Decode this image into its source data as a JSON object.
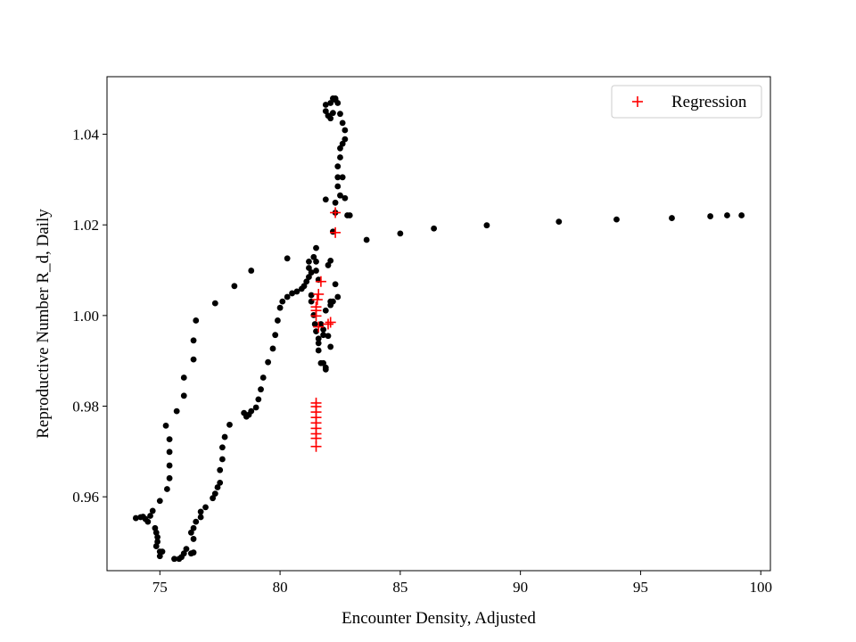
{
  "chart_data": {
    "type": "scatter",
    "title": "",
    "xlabel": "Encounter Density, Adjusted",
    "ylabel": "Reproductive Number R_d, Daily",
    "xlim": [
      72.8,
      100.4
    ],
    "ylim": [
      0.9437,
      1.0527
    ],
    "xticks": [
      75,
      80,
      85,
      90,
      95,
      100
    ],
    "yticks": [
      0.96,
      0.98,
      1.0,
      1.02,
      1.04
    ],
    "xtick_labels": [
      "75",
      "80",
      "85",
      "90",
      "95",
      "100"
    ],
    "ytick_labels": [
      "0.96",
      "0.98",
      "1.00",
      "1.02",
      "1.04"
    ],
    "grid": false,
    "legend": {
      "position": "upper right",
      "entries": [
        "Regression"
      ]
    },
    "series": [
      {
        "marker": "dot",
        "color": "#000000",
        "points": [
          [
            74.0,
            0.9553
          ],
          [
            74.2,
            0.9555
          ],
          [
            74.3,
            0.9556
          ],
          [
            74.4,
            0.9551
          ],
          [
            74.5,
            0.9545
          ],
          [
            74.6,
            0.9558
          ],
          [
            74.7,
            0.9569
          ],
          [
            74.8,
            0.9531
          ],
          [
            74.85,
            0.9521
          ],
          [
            74.9,
            0.9511
          ],
          [
            74.9,
            0.9501
          ],
          [
            74.85,
            0.9491
          ],
          [
            75.0,
            0.9479
          ],
          [
            75.0,
            0.9469
          ],
          [
            75.1,
            0.9479
          ],
          [
            75.0,
            0.9591
          ],
          [
            75.3,
            0.9617
          ],
          [
            75.4,
            0.9641
          ],
          [
            75.4,
            0.9669
          ],
          [
            75.4,
            0.9699
          ],
          [
            75.4,
            0.9727
          ],
          [
            75.25,
            0.9757
          ],
          [
            75.6,
            0.9463
          ],
          [
            75.8,
            0.9463
          ],
          [
            75.9,
            0.9467
          ],
          [
            76.0,
            0.9475
          ],
          [
            76.1,
            0.9485
          ],
          [
            76.3,
            0.9475
          ],
          [
            76.4,
            0.9477
          ],
          [
            76.4,
            0.9507
          ],
          [
            76.3,
            0.9521
          ],
          [
            76.4,
            0.9531
          ],
          [
            76.5,
            0.9545
          ],
          [
            76.7,
            0.9555
          ],
          [
            76.7,
            0.9567
          ],
          [
            76.9,
            0.9577
          ],
          [
            75.7,
            0.9789
          ],
          [
            76.0,
            0.9823
          ],
          [
            76.0,
            0.9863
          ],
          [
            76.4,
            0.9903
          ],
          [
            76.4,
            0.9945
          ],
          [
            76.5,
            0.9989
          ],
          [
            77.2,
            0.9597
          ],
          [
            77.3,
            0.9607
          ],
          [
            77.4,
            0.9621
          ],
          [
            77.5,
            0.9631
          ],
          [
            77.5,
            0.9659
          ],
          [
            77.6,
            0.9683
          ],
          [
            77.6,
            0.9709
          ],
          [
            77.7,
            0.9732
          ],
          [
            77.9,
            0.9759
          ],
          [
            77.3,
            1.0027
          ],
          [
            78.1,
            1.0065
          ],
          [
            78.8,
            1.0099
          ],
          [
            78.5,
            0.9785
          ],
          [
            78.6,
            0.9777
          ],
          [
            78.7,
            0.9781
          ],
          [
            78.8,
            0.9789
          ],
          [
            79.0,
            0.9797
          ],
          [
            79.1,
            0.9815
          ],
          [
            79.2,
            0.9837
          ],
          [
            79.3,
            0.9863
          ],
          [
            79.5,
            0.9897
          ],
          [
            79.7,
            0.9927
          ],
          [
            79.8,
            0.9957
          ],
          [
            79.9,
            0.9989
          ],
          [
            80.0,
            1.0017
          ],
          [
            80.1,
            1.0031
          ],
          [
            80.3,
            1.0041
          ],
          [
            80.5,
            1.0049
          ],
          [
            80.7,
            1.0053
          ],
          [
            80.9,
            1.0059
          ],
          [
            81.0,
            1.0065
          ],
          [
            81.1,
            1.0075
          ],
          [
            81.2,
            1.0085
          ],
          [
            81.3,
            1.0095
          ],
          [
            81.2,
            1.0105
          ],
          [
            81.2,
            1.0119
          ],
          [
            81.4,
            1.0129
          ],
          [
            81.5,
            1.0119
          ],
          [
            81.5,
            1.0149
          ],
          [
            81.5,
            1.0099
          ],
          [
            81.6,
            1.0079
          ],
          [
            80.3,
            1.0126
          ],
          [
            81.3,
            1.0045
          ],
          [
            81.3,
            1.0031
          ],
          [
            81.4,
            1.0001
          ],
          [
            81.45,
            0.9981
          ],
          [
            81.5,
            0.9965
          ],
          [
            81.6,
            0.9949
          ],
          [
            81.6,
            0.9939
          ],
          [
            81.6,
            0.9923
          ],
          [
            81.7,
            0.9895
          ],
          [
            81.7,
            0.9981
          ],
          [
            81.8,
            0.9969
          ],
          [
            81.8,
            0.9957
          ],
          [
            81.8,
            0.9895
          ],
          [
            81.9,
            0.9885
          ],
          [
            81.9,
            0.9881
          ],
          [
            82.1,
            0.9931
          ],
          [
            82.0,
            0.9955
          ],
          [
            81.9,
            1.0011
          ],
          [
            82.1,
            1.0023
          ],
          [
            82.1,
            1.0031
          ],
          [
            82.2,
            1.0031
          ],
          [
            82.3,
            1.0069
          ],
          [
            82.4,
            1.0041
          ],
          [
            82.0,
            1.0111
          ],
          [
            82.1,
            1.0121
          ],
          [
            81.9,
            1.0256
          ],
          [
            82.2,
            1.0185
          ],
          [
            82.3,
            1.0227
          ],
          [
            82.3,
            1.0249
          ],
          [
            82.5,
            1.0265
          ],
          [
            82.4,
            1.0285
          ],
          [
            82.4,
            1.0305
          ],
          [
            82.4,
            1.0329
          ],
          [
            82.5,
            1.0349
          ],
          [
            82.5,
            1.0369
          ],
          [
            82.6,
            1.0379
          ],
          [
            82.7,
            1.0389
          ],
          [
            82.7,
            1.0409
          ],
          [
            82.6,
            1.0425
          ],
          [
            82.5,
            1.0445
          ],
          [
            82.4,
            1.0469
          ],
          [
            82.2,
            1.0479
          ],
          [
            82.1,
            1.0469
          ],
          [
            82.1,
            1.0435
          ],
          [
            81.9,
            1.0451
          ],
          [
            81.9,
            1.0465
          ],
          [
            82.0,
            1.0441
          ],
          [
            82.2,
            1.0447
          ],
          [
            82.3,
            1.0479
          ],
          [
            82.3,
            1.0476
          ],
          [
            82.6,
            1.0305
          ],
          [
            82.7,
            1.0259
          ],
          [
            82.8,
            1.0221
          ],
          [
            82.9,
            1.0221
          ],
          [
            83.6,
            1.0167
          ],
          [
            85.0,
            1.0181
          ],
          [
            86.4,
            1.0192
          ],
          [
            88.6,
            1.0199
          ],
          [
            91.6,
            1.0207
          ],
          [
            94.0,
            1.0212
          ],
          [
            96.3,
            1.0215
          ],
          [
            97.9,
            1.0219
          ],
          [
            98.6,
            1.0221
          ],
          [
            99.2,
            1.0221
          ]
        ]
      },
      {
        "name": "Regression",
        "marker": "plus",
        "color": "#ff0000",
        "points": [
          [
            81.5,
            0.9799
          ],
          [
            81.5,
            0.9787
          ],
          [
            81.5,
            0.9775
          ],
          [
            81.5,
            0.9763
          ],
          [
            81.5,
            0.9751
          ],
          [
            81.5,
            0.9739
          ],
          [
            81.5,
            0.9729
          ],
          [
            81.5,
            0.9711
          ],
          [
            81.6,
            0.9975
          ],
          [
            81.5,
            0.9999
          ],
          [
            81.5,
            1.0011
          ],
          [
            81.5,
            1.0019
          ],
          [
            81.55,
            1.0035
          ],
          [
            81.6,
            1.0047
          ],
          [
            81.7,
            1.0075
          ],
          [
            82.0,
            0.9981
          ],
          [
            82.1,
            0.9985
          ],
          [
            82.3,
            1.0183
          ],
          [
            82.3,
            1.0227
          ],
          [
            81.5,
            0.9807
          ]
        ]
      }
    ]
  }
}
